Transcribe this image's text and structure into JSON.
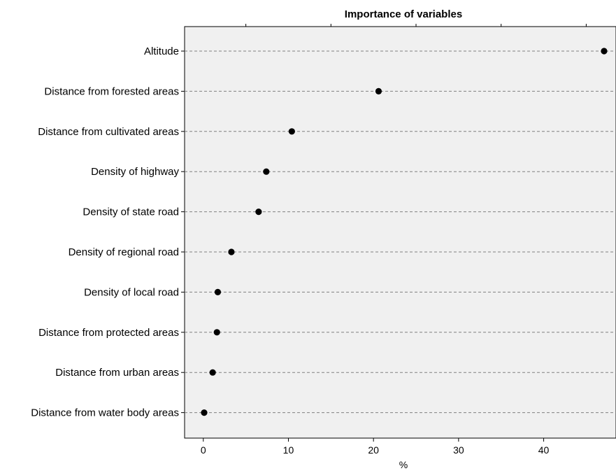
{
  "chart_data": {
    "type": "scatter",
    "title": "Importance of variables",
    "xlabel": "%",
    "ylabel": "",
    "xlim": [
      -2.2,
      48.5
    ],
    "x_ticks": [
      "0",
      "10",
      "20",
      "30",
      "40"
    ],
    "grid": "horizontal dashed",
    "categories": [
      "Altitude",
      "Distance from forested areas",
      "Distance from cultivated areas",
      "Density of highway",
      "Density of state road",
      "Density of regional road",
      "Density of local road",
      "Distance from protected areas",
      "Distance from urban areas",
      "Distance from water body areas"
    ],
    "values": [
      47.1,
      20.6,
      10.4,
      7.4,
      6.5,
      3.3,
      1.7,
      1.6,
      1.1,
      0.1
    ],
    "colors": {
      "panel_background": "#f0f0f0",
      "point": "#000000",
      "grid": "#808080"
    }
  }
}
